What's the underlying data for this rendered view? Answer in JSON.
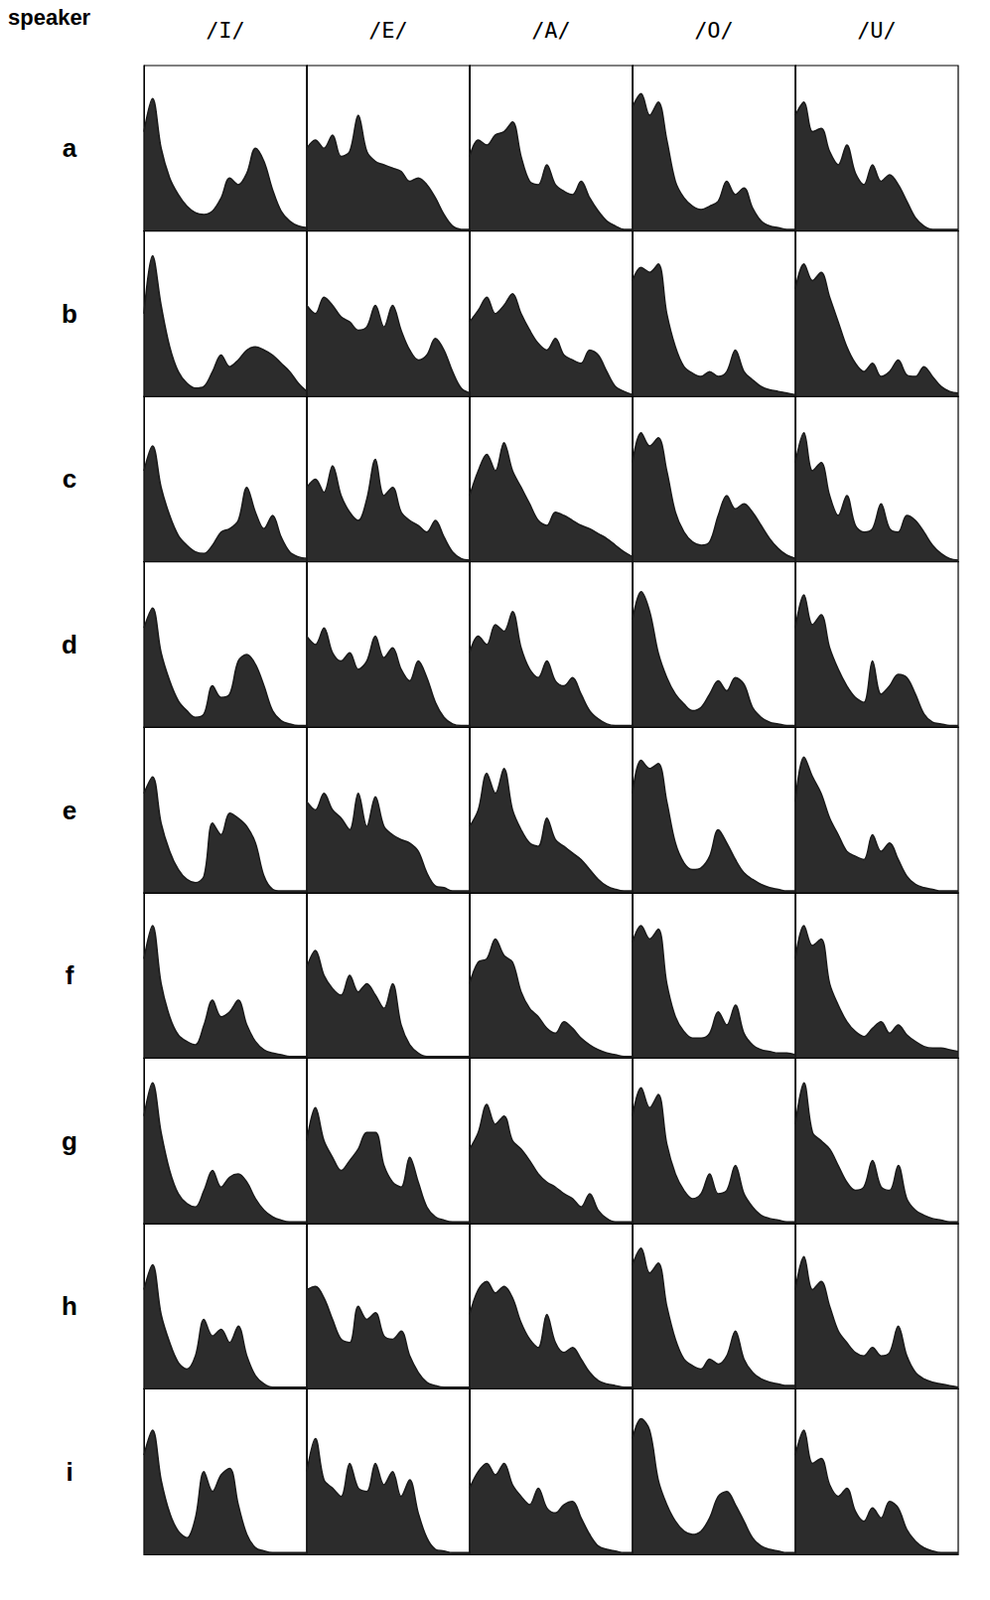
{
  "chart_data": {
    "type": "area",
    "header": "speaker",
    "columns": [
      "/I/",
      "/E/",
      "/A/",
      "/O/",
      "/U/"
    ],
    "x": [
      0,
      1,
      2,
      3,
      4,
      5,
      6,
      7,
      8,
      9,
      10,
      11,
      12,
      13,
      14,
      15,
      16,
      17,
      18,
      19
    ],
    "xlim": [
      0,
      19
    ],
    "ylim": [
      0,
      100
    ],
    "tick_labels": false,
    "color": "#1a1a1a",
    "rows": [
      {
        "name": "a",
        "values": [
          [
            60,
            80,
            50,
            32,
            22,
            15,
            11,
            10,
            12,
            20,
            32,
            28,
            35,
            50,
            42,
            25,
            12,
            6,
            3,
            2
          ],
          [
            50,
            55,
            50,
            58,
            45,
            48,
            70,
            48,
            42,
            40,
            38,
            36,
            30,
            32,
            28,
            20,
            10,
            3,
            1,
            1
          ],
          [
            45,
            55,
            52,
            58,
            60,
            66,
            45,
            30,
            28,
            40,
            28,
            24,
            22,
            30,
            20,
            12,
            6,
            3,
            1,
            1
          ],
          [
            75,
            83,
            70,
            78,
            55,
            30,
            20,
            15,
            13,
            15,
            18,
            30,
            22,
            26,
            14,
            6,
            3,
            2,
            1,
            1
          ],
          [
            70,
            78,
            60,
            62,
            48,
            40,
            52,
            35,
            28,
            40,
            30,
            34,
            28,
            18,
            8,
            3,
            1,
            1,
            1,
            1
          ]
        ]
      },
      {
        "name": "b",
        "values": [
          [
            50,
            85,
            55,
            30,
            15,
            8,
            5,
            6,
            15,
            25,
            18,
            22,
            28,
            30,
            28,
            25,
            20,
            15,
            8,
            3
          ],
          [
            55,
            50,
            60,
            55,
            48,
            45,
            40,
            42,
            55,
            42,
            55,
            40,
            28,
            22,
            25,
            35,
            28,
            15,
            5,
            2
          ],
          [
            45,
            52,
            60,
            50,
            55,
            62,
            50,
            40,
            32,
            28,
            35,
            25,
            22,
            20,
            28,
            25,
            15,
            6,
            3,
            1
          ],
          [
            70,
            78,
            75,
            80,
            50,
            30,
            18,
            14,
            12,
            15,
            12,
            15,
            28,
            15,
            10,
            6,
            4,
            3,
            2,
            1
          ],
          [
            65,
            80,
            70,
            75,
            60,
            45,
            30,
            20,
            15,
            20,
            12,
            15,
            22,
            13,
            12,
            18,
            12,
            6,
            3,
            2
          ]
        ]
      },
      {
        "name": "c",
        "values": [
          [
            55,
            70,
            45,
            28,
            16,
            10,
            6,
            5,
            10,
            18,
            20,
            25,
            45,
            30,
            20,
            28,
            15,
            6,
            3,
            2
          ],
          [
            45,
            50,
            42,
            58,
            40,
            30,
            25,
            38,
            62,
            40,
            45,
            30,
            25,
            22,
            18,
            25,
            15,
            6,
            2,
            1
          ],
          [
            40,
            55,
            65,
            55,
            72,
            55,
            45,
            35,
            25,
            22,
            30,
            28,
            25,
            22,
            20,
            17,
            14,
            10,
            6,
            3
          ],
          [
            60,
            78,
            70,
            75,
            55,
            30,
            18,
            12,
            10,
            12,
            28,
            40,
            32,
            35,
            30,
            22,
            14,
            8,
            4,
            2
          ],
          [
            60,
            78,
            55,
            60,
            40,
            28,
            40,
            22,
            18,
            20,
            35,
            20,
            18,
            28,
            25,
            18,
            10,
            5,
            2,
            1
          ]
        ]
      },
      {
        "name": "d",
        "values": [
          [
            60,
            72,
            45,
            28,
            16,
            10,
            6,
            8,
            25,
            18,
            20,
            40,
            44,
            38,
            25,
            10,
            4,
            2,
            1,
            1
          ],
          [
            55,
            50,
            60,
            45,
            40,
            45,
            35,
            40,
            55,
            42,
            48,
            35,
            28,
            40,
            30,
            15,
            6,
            2,
            1,
            1
          ],
          [
            45,
            55,
            50,
            62,
            58,
            70,
            48,
            35,
            30,
            40,
            28,
            25,
            30,
            20,
            10,
            5,
            2,
            1,
            1,
            1
          ],
          [
            65,
            82,
            70,
            45,
            30,
            20,
            14,
            10,
            12,
            20,
            28,
            22,
            30,
            26,
            12,
            6,
            3,
            2,
            1,
            1
          ],
          [
            60,
            80,
            62,
            68,
            48,
            35,
            25,
            18,
            15,
            40,
            20,
            25,
            32,
            30,
            20,
            8,
            3,
            2,
            1,
            1
          ]
        ]
      },
      {
        "name": "e",
        "values": [
          [
            60,
            70,
            42,
            25,
            14,
            8,
            6,
            10,
            42,
            35,
            48,
            45,
            40,
            30,
            10,
            2,
            1,
            1,
            1,
            1
          ],
          [
            55,
            50,
            60,
            50,
            45,
            38,
            60,
            40,
            58,
            40,
            35,
            32,
            30,
            25,
            12,
            4,
            3,
            1,
            1,
            1
          ],
          [
            40,
            50,
            72,
            60,
            75,
            50,
            38,
            30,
            28,
            45,
            32,
            28,
            24,
            20,
            14,
            8,
            4,
            2,
            1,
            1
          ],
          [
            60,
            80,
            75,
            78,
            55,
            30,
            18,
            14,
            15,
            22,
            38,
            30,
            20,
            12,
            8,
            5,
            3,
            2,
            1,
            1
          ],
          [
            55,
            82,
            70,
            60,
            45,
            35,
            25,
            22,
            20,
            35,
            25,
            30,
            20,
            10,
            5,
            3,
            2,
            1,
            1,
            1
          ]
        ]
      },
      {
        "name": "f",
        "values": [
          [
            60,
            80,
            45,
            25,
            14,
            10,
            8,
            20,
            35,
            25,
            28,
            35,
            20,
            10,
            5,
            3,
            2,
            1,
            1,
            1
          ],
          [
            55,
            65,
            50,
            42,
            38,
            50,
            40,
            45,
            38,
            30,
            45,
            20,
            8,
            3,
            1,
            1,
            1,
            1,
            1,
            1
          ],
          [
            45,
            58,
            60,
            72,
            62,
            58,
            40,
            30,
            25,
            18,
            15,
            22,
            18,
            12,
            8,
            5,
            3,
            2,
            1,
            1
          ],
          [
            70,
            80,
            72,
            78,
            45,
            25,
            16,
            12,
            12,
            15,
            28,
            20,
            32,
            15,
            8,
            5,
            4,
            3,
            3,
            2
          ],
          [
            60,
            80,
            68,
            72,
            45,
            32,
            22,
            16,
            13,
            18,
            22,
            15,
            20,
            14,
            10,
            7,
            6,
            6,
            5,
            4
          ]
        ]
      },
      {
        "name": "g",
        "values": [
          [
            65,
            85,
            55,
            32,
            18,
            12,
            10,
            20,
            32,
            22,
            28,
            30,
            25,
            15,
            8,
            4,
            2,
            1,
            1,
            1
          ],
          [
            50,
            70,
            50,
            40,
            32,
            38,
            45,
            55,
            55,
            35,
            25,
            22,
            40,
            25,
            10,
            4,
            2,
            1,
            1,
            1
          ],
          [
            45,
            55,
            72,
            60,
            65,
            50,
            45,
            38,
            30,
            25,
            22,
            18,
            15,
            10,
            18,
            8,
            3,
            1,
            1,
            1
          ],
          [
            65,
            82,
            70,
            78,
            48,
            30,
            20,
            15,
            18,
            30,
            18,
            20,
            35,
            18,
            10,
            5,
            3,
            2,
            1,
            1
          ],
          [
            60,
            85,
            55,
            50,
            45,
            35,
            25,
            20,
            22,
            38,
            22,
            20,
            35,
            15,
            8,
            5,
            3,
            2,
            1,
            1
          ]
        ]
      },
      {
        "name": "h",
        "values": [
          [
            60,
            75,
            45,
            28,
            16,
            12,
            20,
            42,
            32,
            36,
            28,
            38,
            20,
            8,
            3,
            1,
            1,
            1,
            1,
            1
          ],
          [
            60,
            62,
            55,
            42,
            30,
            28,
            50,
            42,
            46,
            32,
            30,
            35,
            20,
            10,
            4,
            2,
            1,
            1,
            1,
            1
          ],
          [
            45,
            60,
            65,
            58,
            62,
            55,
            40,
            30,
            25,
            45,
            28,
            22,
            25,
            18,
            10,
            5,
            3,
            2,
            1,
            1
          ],
          [
            75,
            85,
            70,
            76,
            50,
            30,
            18,
            14,
            12,
            18,
            15,
            20,
            35,
            18,
            10,
            6,
            4,
            3,
            2,
            2
          ],
          [
            60,
            80,
            60,
            65,
            50,
            35,
            28,
            22,
            20,
            25,
            20,
            22,
            38,
            20,
            10,
            6,
            4,
            3,
            2,
            1
          ]
        ]
      },
      {
        "name": "i",
        "values": [
          [
            60,
            75,
            45,
            25,
            14,
            10,
            22,
            50,
            38,
            48,
            52,
            30,
            12,
            4,
            2,
            1,
            1,
            1,
            1,
            1
          ],
          [
            50,
            70,
            45,
            40,
            35,
            55,
            40,
            38,
            55,
            42,
            50,
            35,
            45,
            25,
            10,
            3,
            2,
            1,
            1,
            1
          ],
          [
            40,
            50,
            55,
            48,
            55,
            42,
            35,
            30,
            40,
            28,
            25,
            30,
            32,
            22,
            12,
            5,
            3,
            2,
            1,
            1
          ],
          [
            70,
            82,
            75,
            45,
            30,
            20,
            14,
            12,
            14,
            22,
            35,
            38,
            30,
            20,
            10,
            5,
            3,
            2,
            1,
            1
          ],
          [
            60,
            75,
            55,
            58,
            42,
            35,
            40,
            26,
            20,
            28,
            22,
            32,
            28,
            15,
            8,
            4,
            2,
            1,
            1,
            1
          ]
        ]
      }
    ]
  }
}
